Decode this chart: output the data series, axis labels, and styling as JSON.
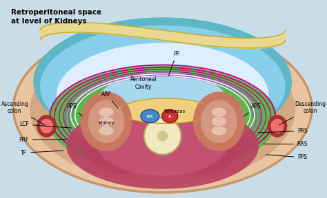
{
  "title": "Retroperitoneal space\nat level of Kidneys",
  "bg": "#c8dde8",
  "colors": {
    "bg": "#c8dde8",
    "outer_fat": "#e8c4a0",
    "outer_fat_edge": "#c8956a",
    "inner_ring": "#d4a882",
    "teal_top": "#5bb8c4",
    "blue_peri": "#87ceeb",
    "light_inner": "#ddeeff",
    "yellow_fat": "#e8d890",
    "yellow_fat_edge": "#c8a820",
    "green_retro": "#5ab84a",
    "purple_fascia": "#9b59b6",
    "magenta_fascia": "#cc0088",
    "light_blue_cavity": "#a8d8f0",
    "pancreas_fill": "#f0d080",
    "pancreas_edge": "#c8a020",
    "kidney_outer": "#c87860",
    "kidney_mid": "#d49880",
    "kidney_inner": "#e8c0b0",
    "colon_outer": "#aa3030",
    "colon_inner": "#ee7070",
    "muscle_pink": "#b84060",
    "muscle_light": "#d06080",
    "spine_fill": "#f0e8c0",
    "spine_edge": "#b8a860",
    "spine_dot": "#d0c890",
    "ivc_fill": "#4488cc",
    "ivc_edge": "#224488",
    "aorta_fill": "#cc3333",
    "aorta_edge": "#881111",
    "vessels_blue": "#3366aa",
    "white_line": "#ffffff",
    "pink_line": "#ff66aa"
  },
  "labels": {
    "ascending_colon": "Ascending\ncolon",
    "descending_colon": "Descending\ncolon",
    "arf": "ARF",
    "peritoneal_cavity": "Peritoneal\nCavity",
    "pancreas": "Pancreas",
    "pp": "PP",
    "aps_left": "APS",
    "aps_right": "APS",
    "ivc": "IVC",
    "a": "A",
    "kidney": "Kidney",
    "lcf": "LCF",
    "prf": "PRF",
    "tf": "TF",
    "prs": "PRS",
    "rrs": "RRS",
    "pps": "PPS"
  }
}
